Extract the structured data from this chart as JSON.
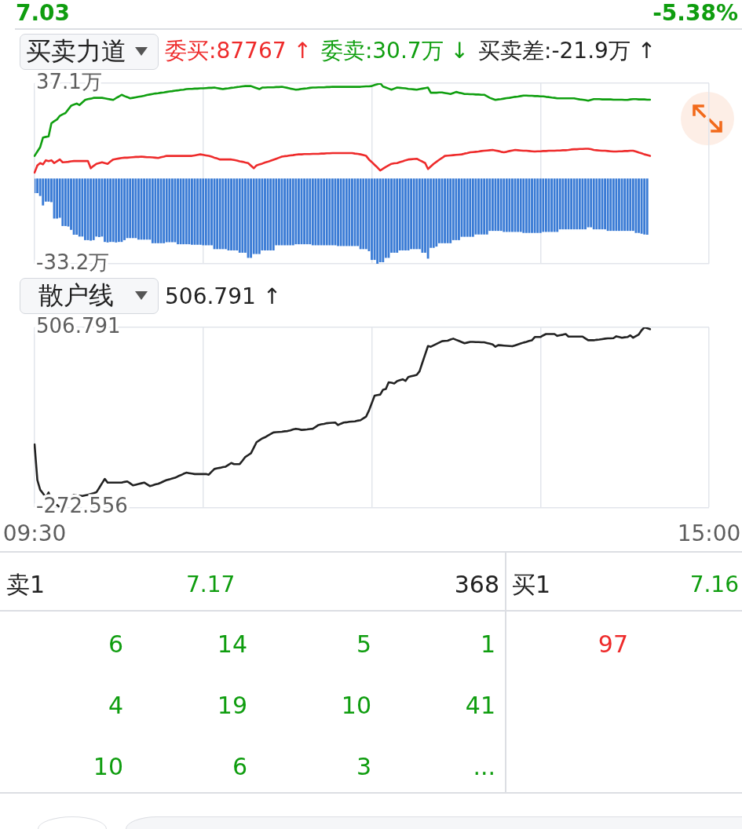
{
  "chart_data": [
    {
      "type": "other",
      "annotations": [
        "7.03",
        "-5.38%"
      ]
    },
    {
      "type": "bar",
      "title": "买卖力道",
      "annotations": [
        "委买:87767 ↑",
        "委卖:30.7万 ↓",
        "买卖差:-21.9万 ↑"
      ],
      "categories": [
        null,
        null,
        null,
        null,
        null,
        null,
        null,
        null,
        null,
        null,
        null,
        null,
        null,
        null,
        null,
        null,
        null,
        null,
        null,
        null,
        null,
        null,
        null,
        null,
        null,
        null,
        null,
        null,
        null,
        null,
        null,
        null,
        null,
        null,
        null,
        null,
        null,
        null,
        null,
        null,
        null,
        null,
        null,
        null,
        null,
        null,
        null,
        null,
        null,
        null,
        null,
        null,
        null,
        null,
        null,
        null,
        null,
        null,
        null,
        null,
        null,
        null,
        null,
        null,
        null,
        null,
        null,
        null,
        null,
        null,
        null,
        null,
        null,
        null,
        null,
        null,
        null,
        null,
        null,
        null,
        null,
        null,
        null,
        null,
        null,
        null,
        null,
        null,
        null,
        null,
        null,
        null,
        null,
        null,
        null,
        null,
        null,
        null,
        null,
        null,
        null,
        null,
        null,
        null,
        null,
        null,
        null,
        null,
        null,
        null,
        null,
        null,
        null,
        null,
        null,
        null,
        null,
        null,
        null,
        null,
        null,
        null,
        null,
        null,
        null,
        null,
        null,
        null,
        null,
        null,
        null,
        null,
        null,
        null,
        null,
        null,
        null,
        null,
        null,
        null,
        null,
        null,
        null,
        null,
        null,
        null,
        null,
        null,
        null,
        null,
        null,
        null,
        null,
        null,
        null,
        null,
        null,
        null,
        null,
        null,
        null,
        null,
        null,
        null,
        null,
        null,
        null,
        null,
        null,
        null,
        null,
        null,
        null,
        null,
        null,
        null,
        null,
        null,
        null,
        null,
        null,
        null,
        null,
        null,
        null,
        null,
        null,
        null,
        null,
        null,
        null,
        null,
        null,
        null,
        null,
        null,
        null,
        null,
        null,
        null,
        null,
        null,
        null,
        null,
        null,
        null,
        null,
        null,
        null,
        null,
        null,
        null,
        null,
        null,
        null,
        null,
        null,
        null,
        null,
        null,
        null,
        null,
        null,
        null,
        null,
        null,
        null,
        null,
        null,
        null,
        null,
        null,
        null,
        null,
        null,
        null,
        null,
        null,
        null,
        null,
        null
      ],
      "ylim": [
        -33.2,
        37.1
      ],
      "yticks": [
        {
          "value": -33.2,
          "label": "-33.2万"
        },
        {
          "value": 37.1,
          "label": "37.1万"
        }
      ],
      "grid": true,
      "series": [
        {
          "type": "line",
          "color": "#ee2b2b",
          "values": [
            2.3,
            5.1,
            6,
            5.5,
            7.1,
            6.8,
            7.1,
            6,
            6.7,
            7.4,
            6.3,
            6.4,
            6.5,
            6.7,
            6.8,
            6.8,
            6.8,
            6.8,
            6.8,
            6.8,
            4,
            4.9,
            5.7,
            6,
            6.3,
            6,
            5.7,
            6.6,
            7.4,
            7.6,
            7.8,
            8,
            8.1,
            8.1,
            8.2,
            8.3,
            8.4,
            8.4,
            8.5,
            8.4,
            8.3,
            8.3,
            8.2,
            8.1,
            8,
            8.3,
            8.5,
            8.8,
            8.8,
            8.8,
            8.8,
            8.8,
            8.8,
            8.8,
            8.8,
            8.8,
            8.8,
            9,
            9.2,
            9.4,
            9.2,
            9,
            8.8,
            8.5,
            8.1,
            7.8,
            7.4,
            7.4,
            7.4,
            7.4,
            7.4,
            7.2,
            7,
            6.7,
            6.5,
            6.2,
            6,
            5,
            4,
            5.1,
            5.5,
            5.8,
            6.2,
            6.5,
            6.9,
            7.3,
            7.7,
            8.1,
            8.5,
            8.7,
            8.8,
            9,
            9.1,
            9.3,
            9.4,
            9.4,
            9.5,
            9.5,
            9.5,
            9.6,
            9.6,
            9.6,
            9.7,
            9.7,
            9.8,
            9.8,
            9.9,
            9.9,
            9.9,
            9.9,
            9.9,
            9.9,
            9.9,
            9.9,
            9.7,
            9.6,
            9.4,
            9.1,
            8.8,
            7.4,
            6.4,
            5.3,
            4.3,
            3.1,
            3.8,
            4.5,
            5.1,
            5.7,
            5.9,
            6,
            6.4,
            6.7,
            7.1,
            7.4,
            7.5,
            7.6,
            7.7,
            7.1,
            6.6,
            6,
            3.7,
            4.7,
            5.7,
            6.5,
            7.3,
            8,
            8.8,
            8.9,
            9,
            9.1,
            9.2,
            9.3,
            9.4,
            9.7,
            9.9,
            10.2,
            10.3,
            10.4,
            10.5,
            10.7,
            10.8,
            10.9,
            11,
            11.1,
            10.9,
            10.7,
            10.4,
            10.2,
            10.4,
            10.7,
            10.9,
            11.1,
            11,
            10.9,
            10.8,
            10.8,
            10.7,
            10.6,
            10.5,
            10.6,
            10.6,
            10.7,
            10.7,
            10.8,
            10.8,
            10.8,
            10.9,
            10.9,
            11,
            11,
            11.1,
            11.3,
            11.4,
            11.4,
            11.5,
            11.5,
            11.6,
            11.6,
            11.4,
            11.1,
            11,
            10.9,
            10.8,
            10.8,
            10.7,
            10.6,
            10.5,
            10.5,
            10.6,
            10.6,
            10.7,
            10.7,
            10.8,
            10.8,
            10.5,
            10.1,
            9.8,
            9.4,
            9.1,
            8.8,
            null,
            null,
            null,
            null,
            null,
            null,
            null,
            null,
            null,
            null,
            null,
            null,
            null,
            null,
            null,
            null,
            null,
            null,
            null,
            null,
            null
          ]
        },
        {
          "type": "line",
          "color": "#109f10",
          "values": [
            8.8,
            10.5,
            12.2,
            15.9,
            16.2,
            16.4,
            21.5,
            22.3,
            23,
            24.4,
            25,
            25.5,
            26.9,
            28.3,
            28.8,
            29.2,
            28.6,
            29.6,
            30.6,
            30.9,
            31.1,
            31.4,
            31.4,
            31.4,
            31.4,
            31.2,
            31,
            30.8,
            30.6,
            31.3,
            31.9,
            32.6,
            32.1,
            31.7,
            31.2,
            31.4,
            31.6,
            31.8,
            32,
            32.2,
            32.5,
            32.7,
            32.9,
            33.1,
            33.2,
            33.4,
            33.5,
            33.7,
            33.9,
            34,
            34.2,
            34.3,
            34.5,
            34.6,
            34.8,
            34.9,
            34.9,
            35,
            35,
            35.1,
            35.1,
            35.2,
            35.3,
            35.3,
            35.4,
            35.2,
            35,
            34.8,
            35,
            35.1,
            35.3,
            35.4,
            35.6,
            35.7,
            35.9,
            36,
            36,
            36,
            35.6,
            35.2,
            34.8,
            35.4,
            35.4,
            35.5,
            35.5,
            35.5,
            35.6,
            35.6,
            35.7,
            35.5,
            35.3,
            35,
            34.8,
            34.6,
            34.7,
            34.9,
            35,
            35.1,
            35.3,
            35.4,
            35.4,
            35.5,
            35.5,
            35.5,
            35.6,
            35.6,
            35.7,
            35.7,
            35.7,
            35.7,
            35.7,
            35.7,
            35.7,
            35.7,
            35.7,
            35.7,
            35.7,
            35.8,
            35.9,
            35.9,
            36,
            36.4,
            36.7,
            37.1,
            35.8,
            35.4,
            35,
            34.6,
            35,
            35.4,
            35.3,
            35.2,
            35.1,
            34.9,
            34.8,
            34.7,
            34.6,
            34.8,
            35,
            35.2,
            35.4,
            33.4,
            33.4,
            33.4,
            33.5,
            33.5,
            33.3,
            33.1,
            32.9,
            33.3,
            33.7,
            33.4,
            33.2,
            32.9,
            32.9,
            32.8,
            32.8,
            32.7,
            32.7,
            32.6,
            32.6,
            32,
            31.4,
            31,
            30.6,
            30.8,
            30.9,
            31.1,
            31.3,
            31.4,
            31.6,
            31.8,
            31.9,
            32.1,
            32.3,
            32.3,
            32.2,
            32.2,
            32.1,
            32.1,
            32,
            32,
            31.8,
            31.7,
            31.5,
            31.4,
            31.2,
            31.2,
            31.2,
            31.2,
            31.2,
            31.2,
            31.2,
            31,
            30.8,
            30.7,
            30.5,
            30.3,
            30.6,
            30.9,
            30.9,
            30.9,
            30.8,
            30.8,
            30.8,
            30.8,
            30.7,
            30.7,
            30.7,
            30.7,
            30.6,
            30.6,
            30.8,
            30.9,
            30.9,
            30.8,
            30.8,
            30.8,
            30.7,
            30.7,
            null,
            null,
            null,
            null,
            null,
            null,
            null,
            null,
            null,
            null,
            null,
            null,
            null,
            null,
            null,
            null,
            null,
            null,
            null,
            null,
            null
          ]
        },
        {
          "type": "bar",
          "color": "#3a7bd5",
          "values": [
            -5.7,
            -5.7,
            -6.8,
            -10.5,
            -9,
            -9,
            -9.2,
            -15.6,
            -15.6,
            -15.3,
            -18.5,
            -18.5,
            -18.7,
            -20,
            -21.9,
            -21.9,
            -22.6,
            -22.6,
            -24,
            -24,
            -24.2,
            -24,
            -22.6,
            -22.8,
            -22.6,
            -24.7,
            -24.9,
            -24.7,
            -24.7,
            -24.9,
            -24.7,
            -24.7,
            -24,
            -23.2,
            -23.2,
            -23.2,
            -23.2,
            -23.8,
            -23.8,
            -23.8,
            -23.8,
            -23.8,
            -25.2,
            -25.2,
            -25.2,
            -25.2,
            -25.2,
            -24.8,
            -24.8,
            -24.8,
            -24.8,
            -25.6,
            -25.6,
            -25.6,
            -25.6,
            -25.6,
            -25.8,
            -25.8,
            -25.8,
            -25.8,
            -26,
            -26,
            -26,
            -26,
            -27.5,
            -27.5,
            -27.5,
            -27.5,
            -27.5,
            -28,
            -28,
            -28,
            -28,
            -28.9,
            -28.9,
            -28.9,
            -30.9,
            -30.9,
            -29.4,
            -29.4,
            -29.4,
            -28,
            -28,
            -28,
            -28,
            -28,
            -26,
            -26,
            -26,
            -26,
            -26,
            -26,
            -26,
            -25.6,
            -25.6,
            -25.6,
            -25.6,
            -25.6,
            -25.6,
            -26,
            -26,
            -26,
            -26,
            -26,
            -26,
            -26,
            -26,
            -26,
            -26.3,
            -26.3,
            -26.3,
            -26.3,
            -26.3,
            -26.3,
            -26.3,
            -26.3,
            -27.5,
            -27.5,
            -27.5,
            -28.3,
            -31.7,
            -31.7,
            -33.2,
            -32.6,
            -32.6,
            -30.9,
            -30.9,
            -28.9,
            -28.9,
            -28.9,
            -28,
            -28,
            -28,
            -28,
            -27.5,
            -27.5,
            -27.5,
            -27.5,
            -28.9,
            -28.9,
            -31.2,
            -27,
            -27,
            -26.5,
            -25.2,
            -25.2,
            -25.2,
            -25.2,
            -25.2,
            -24,
            -24,
            -24,
            -22.7,
            -22.7,
            -22.7,
            -22.7,
            -22.7,
            -21.8,
            -21.8,
            -21.8,
            -21.8,
            -21.8,
            -20.4,
            -20.4,
            -20.4,
            -20.4,
            -20.4,
            -20.8,
            -20.8,
            -20.8,
            -20.8,
            -20.8,
            -20.8,
            -20.8,
            -21.2,
            -21.2,
            -21.2,
            -21.2,
            -21.2,
            -21.2,
            -21.2,
            -20.8,
            -20.8,
            -20.8,
            -20.8,
            -20.8,
            -20.8,
            -19.8,
            -19.8,
            -19.8,
            -19.8,
            -19.8,
            -19.8,
            -19.8,
            -19.8,
            -19.8,
            -19.8,
            -19,
            -19,
            -19.8,
            -19.8,
            -19.8,
            -19.8,
            -19.8,
            -20.4,
            -20.4,
            -20.4,
            -20.4,
            -20.4,
            -20.4,
            -20.4,
            -20.4,
            -20.4,
            -20.4,
            -21.2,
            -21.2,
            -21.5,
            -21.8,
            -21.9,
            null,
            null,
            null,
            null,
            null,
            null,
            null,
            null,
            null,
            null,
            null,
            null,
            null,
            null,
            null,
            null,
            null,
            null,
            null,
            null,
            null,
            null
          ]
        }
      ]
    },
    {
      "type": "line",
      "title": "散户线",
      "annotations": [
        "506.791 ↑"
      ],
      "categories": [
        "09:30",
        null,
        null,
        null,
        null,
        null,
        null,
        null,
        null,
        null,
        null,
        null,
        null,
        null,
        null,
        null,
        null,
        null,
        null,
        null,
        null,
        null,
        null,
        null,
        null,
        null,
        null,
        null,
        null,
        null,
        null,
        null,
        null,
        null,
        null,
        null,
        null,
        null,
        null,
        null,
        null,
        null,
        null,
        null,
        null,
        null,
        null,
        null,
        null,
        null,
        null,
        null,
        null,
        null,
        null,
        null,
        null,
        null,
        null,
        null,
        null,
        null,
        null,
        null,
        null,
        null,
        null,
        null,
        null,
        null,
        null,
        null,
        null,
        null,
        null,
        null,
        null,
        null,
        null,
        null,
        null,
        null,
        null,
        null,
        null,
        null,
        null,
        null,
        null,
        null,
        null,
        null,
        null,
        null,
        null,
        null,
        null,
        null,
        null,
        null,
        null,
        null,
        null,
        null,
        null,
        null,
        null,
        null,
        null,
        null,
        null,
        null,
        null,
        null,
        null,
        null,
        null,
        null,
        null,
        null,
        null,
        null,
        null,
        null,
        null,
        null,
        null,
        null,
        null,
        null,
        null,
        null,
        null,
        null,
        null,
        null,
        null,
        null,
        null,
        null,
        null,
        null,
        null,
        null,
        null,
        null,
        null,
        null,
        null,
        null,
        null,
        null,
        null,
        null,
        null,
        null,
        null,
        null,
        null,
        null,
        null,
        null,
        null,
        null,
        null,
        null,
        null,
        null,
        null,
        null,
        null,
        null,
        null,
        null,
        null,
        null,
        null,
        null,
        null,
        null,
        null,
        null,
        null,
        null,
        null,
        null,
        null,
        null,
        null,
        null,
        null,
        null,
        null,
        null,
        null,
        null,
        null,
        null,
        null,
        null,
        null,
        null,
        null,
        null,
        null,
        null,
        null,
        null,
        null,
        null,
        null,
        null,
        null,
        null,
        null,
        null,
        null,
        null,
        null,
        null,
        null,
        null,
        null,
        null,
        null,
        null,
        null,
        null,
        null,
        null,
        null,
        null,
        null,
        null,
        null,
        null,
        null,
        null,
        null,
        null,
        "15:00"
      ],
      "ylim": [
        -272.556,
        506.791
      ],
      "yticks": [
        -272.556,
        506.791
      ],
      "grid": true,
      "series": [
        {
          "color": "#222222",
          "values": [
            0,
            -154,
            -196,
            -212,
            -229,
            -208,
            -239,
            -260,
            -262,
            -272.556,
            -261,
            -250,
            -239,
            -228,
            -218,
            -220,
            -221,
            -223,
            -220,
            -218,
            -214,
            -211,
            -207,
            -188,
            -168,
            -149,
            -165,
            -165,
            -165,
            -165,
            -165,
            -165,
            -162,
            -160,
            -168,
            -177,
            -174,
            -171,
            -168,
            -165,
            -172,
            -180,
            -177,
            -173,
            -170,
            -165,
            -159,
            -154,
            -151,
            -147,
            -144,
            -138,
            -133,
            -127,
            -122,
            -124,
            -126,
            -128,
            -128,
            -128,
            -128,
            -128,
            -131,
            -118,
            -106,
            -103,
            -101,
            -98,
            -96,
            -88,
            -80,
            -85,
            -85,
            -85,
            -70,
            -54,
            -46,
            -38,
            -14,
            10,
            18,
            26,
            31,
            38,
            45,
            52,
            53,
            54,
            55,
            57,
            58,
            61,
            65,
            68,
            66,
            63,
            64,
            65,
            67,
            68,
            76,
            84,
            87,
            89,
            92,
            93,
            94,
            95,
            84,
            90,
            95,
            96,
            98,
            99,
            100,
            103,
            105,
            113,
            121,
            147,
            179,
            211,
            214,
            216,
            237,
            240,
            269,
            267,
            264,
            274,
            278,
            282,
            275,
            292,
            295,
            298,
            301,
            317,
            354,
            390,
            426,
            423,
            429,
            435,
            441,
            447,
            448,
            449,
            454,
            458,
            453,
            448,
            443,
            438,
            441,
            444,
            444,
            443,
            443,
            442,
            442,
            439,
            436,
            433,
            423,
            430,
            429,
            428,
            427,
            426,
            425,
            429,
            433,
            437,
            441,
            444,
            448,
            451,
            465,
            465,
            465,
            472,
            478,
            478,
            478,
            478,
            470,
            473,
            475,
            478,
            467,
            467,
            467,
            467,
            467,
            467,
            459,
            451,
            451,
            451,
            453,
            454,
            456,
            458,
            459,
            459,
            460,
            468,
            465,
            462,
            464,
            465,
            472,
            462,
            469,
            476,
            494,
            506.791,
            503,
            499,
            null,
            null,
            null,
            null,
            null,
            null,
            null,
            null,
            null,
            null,
            null,
            null,
            null,
            null,
            null,
            null,
            null,
            null,
            null,
            null,
            null
          ]
        }
      ]
    },
    {
      "type": "other",
      "annotations": [
        "卖1",
        "7.17",
        "368",
        "买1",
        "7.16",
        "6",
        "14",
        "5",
        "1",
        "4",
        "19",
        "10",
        "41",
        "10",
        "6",
        "3",
        "...",
        "97"
      ]
    }
  ]
}
